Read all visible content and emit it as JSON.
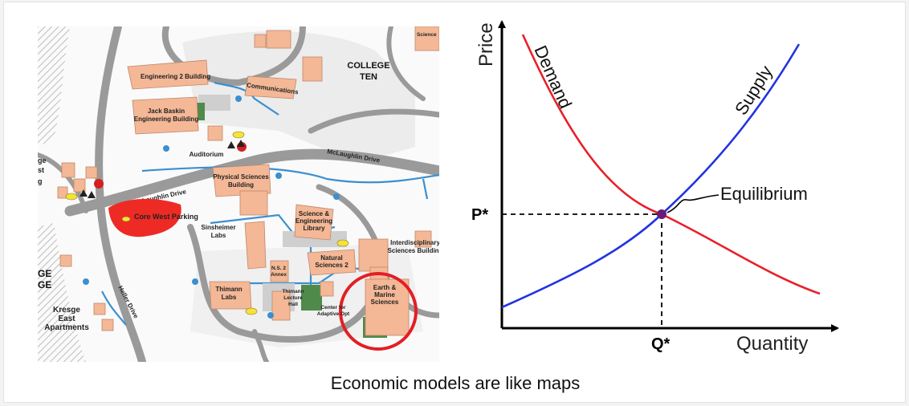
{
  "caption": "Economic models are like maps",
  "map": {
    "buildings": [
      {
        "id": "engineering-2",
        "label": [
          "Engineering 2 Building"
        ]
      },
      {
        "id": "jack-baskin",
        "label": [
          "Jack Baskin",
          "Engineering Building"
        ]
      },
      {
        "id": "physical-sciences",
        "label": [
          "Physical Sciences",
          "Building"
        ]
      },
      {
        "id": "sinsheimer",
        "label": [
          "Sinsheimer",
          "Labs"
        ]
      },
      {
        "id": "science-library",
        "label": [
          "Science &",
          "Engineering",
          "Library"
        ]
      },
      {
        "id": "natural-sciences-2",
        "label": [
          "Natural",
          "Sciences 2"
        ]
      },
      {
        "id": "interdisciplinary",
        "label": [
          "Interdisciplinary",
          "Sciences Building"
        ]
      },
      {
        "id": "thimann-labs",
        "label": [
          "Thimann",
          "Labs"
        ]
      },
      {
        "id": "thimann-lecture",
        "label": [
          "Thimann",
          "Lecture",
          "Hall"
        ]
      },
      {
        "id": "ns2-annex",
        "label": [
          "N.S. 2",
          "Annex"
        ]
      },
      {
        "id": "earth-marine",
        "label": [
          "Earth &",
          "Marine",
          "Sciences"
        ]
      },
      {
        "id": "adaptive-opt",
        "label": [
          "Center for",
          "Adaptive Opt"
        ]
      },
      {
        "id": "auditorium",
        "label": [
          "Auditorium"
        ]
      },
      {
        "id": "communications",
        "label": [
          "Communications"
        ]
      },
      {
        "id": "kresge-east",
        "label": [
          "Kresge",
          "East",
          "Apartments"
        ]
      },
      {
        "id": "college-ten",
        "label": [
          "COLLEGE",
          "TEN"
        ]
      },
      {
        "id": "core-west",
        "label": [
          "Core West Parking"
        ]
      }
    ],
    "roads": [
      "McLaughlin Drive",
      "McLaughlin Drive",
      "Heller Drive"
    ],
    "edge_labels": [
      "GE",
      "GE",
      "ge",
      "st",
      "g",
      "Science"
    ],
    "colors": {
      "building": "#f4b896",
      "road": "#9a9a9a",
      "path": "#3b8fd0",
      "parking": "#ee2a24",
      "highlight": "#e31e24",
      "green": "#4f8a4a"
    }
  },
  "graph": {
    "y_label": "Price",
    "x_label": "Quantity",
    "demand_label": "Demand",
    "supply_label": "Supply",
    "equilibrium_label": "Equilibrium",
    "p_star": "P*",
    "q_star": "Q*",
    "colors": {
      "demand": "#e8202a",
      "supply": "#2233e0",
      "equilibrium": "#6a1a7a",
      "axis": "#000000"
    }
  }
}
